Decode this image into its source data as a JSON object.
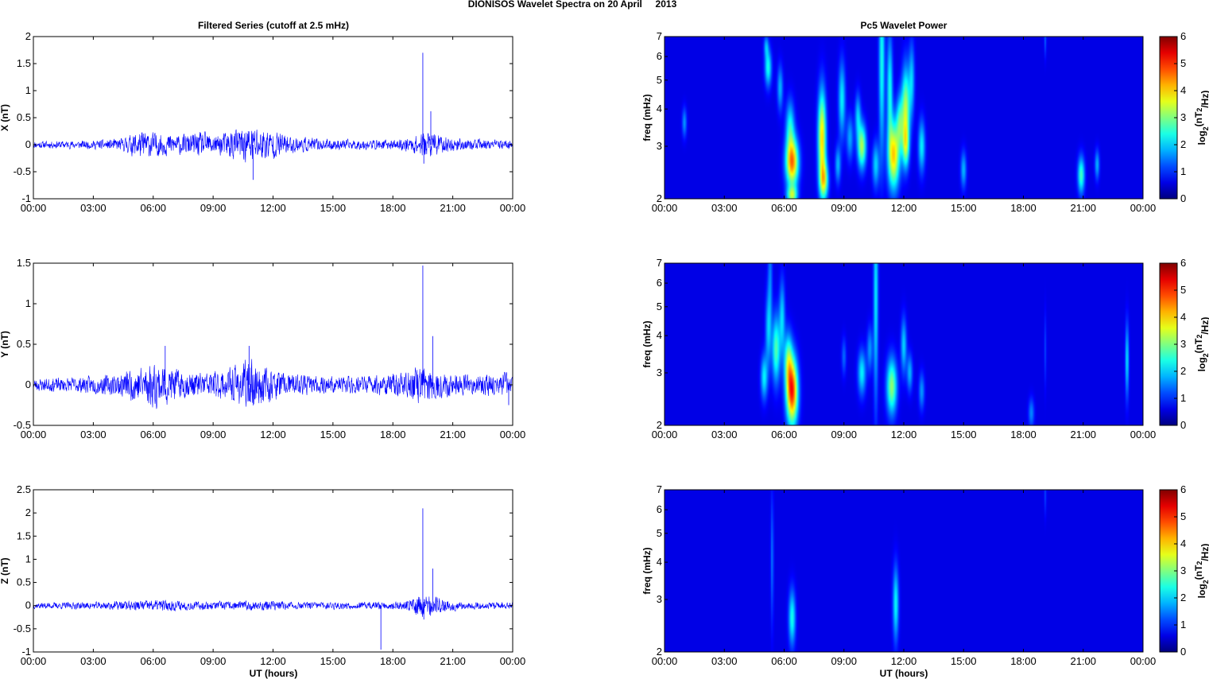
{
  "figure": {
    "suptitle": "DIONISOS Wavelet Spectra on 20 April     2013",
    "left_title": "Filtered Series (cutoff at 2.5 mHz)",
    "right_title": "Pc5 Wavelet Power",
    "x_label": "UT (hours)",
    "freq_label": "freq (mHz)",
    "colorbar_label": "log2(nT2/Hz)"
  },
  "chart_data": [
    {
      "type": "line",
      "component": "X",
      "ylabel": "X (nT)",
      "xlim": [
        0,
        24
      ],
      "xticks": [
        "00:00",
        "03:00",
        "06:00",
        "09:00",
        "12:00",
        "15:00",
        "18:00",
        "21:00",
        "00:00"
      ],
      "ylim": [
        -1,
        2
      ],
      "yticks": [
        -1,
        -0.5,
        0,
        0.5,
        1,
        1.5,
        2
      ],
      "ytick_labels": [
        "-1",
        "-0.5",
        "0",
        "0.5",
        "1",
        "1.5",
        "2"
      ],
      "color": "#0000ff",
      "activity_hours": [
        [
          0,
          0.05
        ],
        [
          3,
          0.06
        ],
        [
          4.5,
          0.09
        ],
        [
          5.2,
          0.2
        ],
        [
          6,
          0.18
        ],
        [
          6.8,
          0.15
        ],
        [
          7.6,
          0.14
        ],
        [
          8.4,
          0.18
        ],
        [
          9.2,
          0.14
        ],
        [
          10,
          0.22
        ],
        [
          11,
          0.28
        ],
        [
          12,
          0.2
        ],
        [
          13,
          0.12
        ],
        [
          14.5,
          0.08
        ],
        [
          16,
          0.07
        ],
        [
          17.5,
          0.07
        ],
        [
          18.5,
          0.08
        ],
        [
          19.3,
          0.15
        ],
        [
          19.8,
          0.22
        ],
        [
          20.5,
          0.12
        ],
        [
          21.5,
          0.08
        ],
        [
          24,
          0.06
        ]
      ],
      "spikes": [
        {
          "x": 19.5,
          "y": 1.7
        },
        {
          "x": 19.55,
          "y": -0.35
        },
        {
          "x": 19.9,
          "y": 0.62
        },
        {
          "x": 11.0,
          "y": -0.65
        }
      ],
      "seed": 11
    },
    {
      "type": "line",
      "component": "Y",
      "ylabel": "Y (nT)",
      "xlim": [
        0,
        24
      ],
      "xticks": [
        "00:00",
        "03:00",
        "06:00",
        "09:00",
        "12:00",
        "15:00",
        "18:00",
        "21:00",
        "00:00"
      ],
      "ylim": [
        -0.5,
        1.5
      ],
      "yticks": [
        -0.5,
        0,
        0.5,
        1,
        1.5
      ],
      "ytick_labels": [
        "-0.5",
        "0",
        "0.5",
        "1",
        "1.5"
      ],
      "color": "#0000ff",
      "activity_hours": [
        [
          0,
          0.06
        ],
        [
          2,
          0.07
        ],
        [
          4,
          0.1
        ],
        [
          5.3,
          0.18
        ],
        [
          6.2,
          0.22
        ],
        [
          6.8,
          0.18
        ],
        [
          7.6,
          0.12
        ],
        [
          8.6,
          0.12
        ],
        [
          9.6,
          0.14
        ],
        [
          10.8,
          0.24
        ],
        [
          11.8,
          0.16
        ],
        [
          13,
          0.1
        ],
        [
          14.5,
          0.08
        ],
        [
          16,
          0.09
        ],
        [
          17.5,
          0.1
        ],
        [
          18.7,
          0.12
        ],
        [
          19.5,
          0.2
        ],
        [
          20.5,
          0.12
        ],
        [
          22,
          0.09
        ],
        [
          23.8,
          0.12
        ],
        [
          24,
          0.1
        ]
      ],
      "spikes": [
        {
          "x": 19.5,
          "y": 1.47
        },
        {
          "x": 20.0,
          "y": 0.6
        },
        {
          "x": 10.8,
          "y": 0.48
        },
        {
          "x": 6.6,
          "y": 0.48
        },
        {
          "x": 23.8,
          "y": -0.25
        }
      ],
      "seed": 23
    },
    {
      "type": "line",
      "component": "Z",
      "ylabel": "Z (nT)",
      "xlim": [
        0,
        24
      ],
      "xticks": [
        "00:00",
        "03:00",
        "06:00",
        "09:00",
        "12:00",
        "15:00",
        "18:00",
        "21:00",
        "00:00"
      ],
      "ylim": [
        -1,
        2.5
      ],
      "yticks": [
        -1,
        -0.5,
        0,
        0.5,
        1,
        1.5,
        2,
        2.5
      ],
      "ytick_labels": [
        "-1",
        "-0.5",
        "0",
        "0.5",
        "1",
        "1.5",
        "2",
        "2.5"
      ],
      "color": "#0000ff",
      "activity_hours": [
        [
          0,
          0.05
        ],
        [
          3,
          0.06
        ],
        [
          5.5,
          0.09
        ],
        [
          6.5,
          0.1
        ],
        [
          8,
          0.07
        ],
        [
          10,
          0.07
        ],
        [
          11.8,
          0.09
        ],
        [
          13,
          0.06
        ],
        [
          16,
          0.06
        ],
        [
          18.5,
          0.07
        ],
        [
          19.5,
          0.2
        ],
        [
          20.2,
          0.14
        ],
        [
          21.5,
          0.06
        ],
        [
          24,
          0.06
        ]
      ],
      "spikes": [
        {
          "x": 19.5,
          "y": 2.1
        },
        {
          "x": 20.0,
          "y": 0.8
        },
        {
          "x": 19.55,
          "y": -0.3
        },
        {
          "x": 17.4,
          "y": -0.95
        }
      ],
      "seed": 37
    },
    {
      "type": "heatmap",
      "component": "X",
      "xlim": [
        0,
        24
      ],
      "xticks": [
        "00:00",
        "03:00",
        "06:00",
        "09:00",
        "12:00",
        "15:00",
        "18:00",
        "21:00",
        "00:00"
      ],
      "ylabel": "freq (mHz)",
      "yscale": "log",
      "ylim": [
        2,
        7
      ],
      "yticks": [
        2,
        3,
        4,
        5,
        6,
        7
      ],
      "colorbar": {
        "range": [
          0,
          6
        ],
        "ticks": [
          0,
          1,
          2,
          3,
          4,
          5,
          6
        ],
        "label": "log2(nT2/Hz)",
        "colormap": "jet"
      },
      "blobs": [
        {
          "t": 1.0,
          "f": 3.6,
          "dt": 0.08,
          "df": 0.08,
          "a": 1.2
        },
        {
          "t": 5.2,
          "f": 5.5,
          "dt": 0.12,
          "df": 0.1,
          "a": 2.0
        },
        {
          "t": 5.1,
          "f": 6.5,
          "dt": 0.08,
          "df": 0.06,
          "a": 1.2
        },
        {
          "t": 5.8,
          "f": 4.7,
          "dt": 0.1,
          "df": 0.12,
          "a": 1.4
        },
        {
          "t": 6.4,
          "f": 2.65,
          "dt": 0.22,
          "df": 0.13,
          "a": 4.4
        },
        {
          "t": 6.3,
          "f": 3.5,
          "dt": 0.15,
          "df": 0.14,
          "a": 1.8
        },
        {
          "t": 6.4,
          "f": 2.05,
          "dt": 0.18,
          "df": 0.05,
          "a": 2.6
        },
        {
          "t": 7.9,
          "f": 3.2,
          "dt": 0.14,
          "df": 0.25,
          "a": 3.8
        },
        {
          "t": 8.0,
          "f": 2.3,
          "dt": 0.15,
          "df": 0.1,
          "a": 2.8
        },
        {
          "t": 8.7,
          "f": 2.6,
          "dt": 0.1,
          "df": 0.1,
          "a": 1.4
        },
        {
          "t": 8.9,
          "f": 4.3,
          "dt": 0.12,
          "df": 0.2,
          "a": 1.8
        },
        {
          "t": 9.3,
          "f": 3.2,
          "dt": 0.12,
          "df": 0.12,
          "a": 1.3
        },
        {
          "t": 9.9,
          "f": 3.0,
          "dt": 0.15,
          "df": 0.12,
          "a": 3.0
        },
        {
          "t": 9.7,
          "f": 3.8,
          "dt": 0.1,
          "df": 0.12,
          "a": 1.5
        },
        {
          "t": 10.6,
          "f": 2.6,
          "dt": 0.12,
          "df": 0.12,
          "a": 1.6
        },
        {
          "t": 10.9,
          "f": 5.8,
          "dt": 0.1,
          "df": 0.5,
          "a": 2.0
        },
        {
          "t": 11.3,
          "f": 4.6,
          "dt": 0.1,
          "df": 0.3,
          "a": 2.0
        },
        {
          "t": 11.5,
          "f": 2.8,
          "dt": 0.2,
          "df": 0.18,
          "a": 3.8
        },
        {
          "t": 11.8,
          "f": 3.6,
          "dt": 0.12,
          "df": 0.15,
          "a": 2.0
        },
        {
          "t": 12.1,
          "f": 4.0,
          "dt": 0.14,
          "df": 0.22,
          "a": 3.0
        },
        {
          "t": 12.1,
          "f": 3.0,
          "dt": 0.12,
          "df": 0.12,
          "a": 2.2
        },
        {
          "t": 12.4,
          "f": 5.0,
          "dt": 0.1,
          "df": 0.2,
          "a": 1.5
        },
        {
          "t": 12.9,
          "f": 3.0,
          "dt": 0.12,
          "df": 0.14,
          "a": 1.8
        },
        {
          "t": 15.0,
          "f": 2.5,
          "dt": 0.1,
          "df": 0.1,
          "a": 1.4
        },
        {
          "t": 20.9,
          "f": 2.4,
          "dt": 0.12,
          "df": 0.1,
          "a": 2.3
        },
        {
          "t": 21.7,
          "f": 2.6,
          "dt": 0.08,
          "df": 0.08,
          "a": 1.4
        },
        {
          "t": 19.1,
          "f": 6.9,
          "dt": 0.04,
          "df": 0.1,
          "a": 0.8
        }
      ]
    },
    {
      "type": "heatmap",
      "component": "Y",
      "xlim": [
        0,
        24
      ],
      "xticks": [
        "00:00",
        "03:00",
        "06:00",
        "09:00",
        "12:00",
        "15:00",
        "18:00",
        "21:00",
        "00:00"
      ],
      "ylabel": "freq (mHz)",
      "yscale": "log",
      "ylim": [
        2,
        7
      ],
      "yticks": [
        2,
        3,
        4,
        5,
        6,
        7
      ],
      "colorbar": {
        "range": [
          0,
          6
        ],
        "ticks": [
          0,
          1,
          2,
          3,
          4,
          5,
          6
        ],
        "label": "log2(nT2/Hz)",
        "colormap": "jet"
      },
      "blobs": [
        {
          "t": 5.0,
          "f": 2.9,
          "dt": 0.12,
          "df": 0.12,
          "a": 1.8
        },
        {
          "t": 5.2,
          "f": 4.2,
          "dt": 0.1,
          "df": 0.2,
          "a": 1.4
        },
        {
          "t": 5.3,
          "f": 6.3,
          "dt": 0.08,
          "df": 0.3,
          "a": 1.0
        },
        {
          "t": 5.6,
          "f": 3.6,
          "dt": 0.14,
          "df": 0.18,
          "a": 2.4
        },
        {
          "t": 5.9,
          "f": 4.6,
          "dt": 0.1,
          "df": 0.2,
          "a": 1.6
        },
        {
          "t": 6.4,
          "f": 2.6,
          "dt": 0.2,
          "df": 0.18,
          "a": 5.0
        },
        {
          "t": 6.2,
          "f": 3.3,
          "dt": 0.14,
          "df": 0.15,
          "a": 2.2
        },
        {
          "t": 9.0,
          "f": 3.4,
          "dt": 0.08,
          "df": 0.1,
          "a": 0.9
        },
        {
          "t": 9.9,
          "f": 3.0,
          "dt": 0.14,
          "df": 0.12,
          "a": 1.8
        },
        {
          "t": 10.3,
          "f": 3.6,
          "dt": 0.1,
          "df": 0.12,
          "a": 1.2
        },
        {
          "t": 10.6,
          "f": 5.5,
          "dt": 0.08,
          "df": 0.6,
          "a": 1.8
        },
        {
          "t": 11.4,
          "f": 2.7,
          "dt": 0.18,
          "df": 0.15,
          "a": 2.8
        },
        {
          "t": 12.0,
          "f": 3.7,
          "dt": 0.1,
          "df": 0.15,
          "a": 1.6
        },
        {
          "t": 12.3,
          "f": 3.0,
          "dt": 0.1,
          "df": 0.1,
          "a": 1.4
        },
        {
          "t": 12.9,
          "f": 2.6,
          "dt": 0.1,
          "df": 0.1,
          "a": 1.2
        },
        {
          "t": 18.4,
          "f": 2.2,
          "dt": 0.1,
          "df": 0.08,
          "a": 1.1
        },
        {
          "t": 19.1,
          "f": 3.6,
          "dt": 0.04,
          "df": 0.2,
          "a": 0.6
        },
        {
          "t": 23.2,
          "f": 3.3,
          "dt": 0.06,
          "df": 0.2,
          "a": 1.8
        }
      ]
    },
    {
      "type": "heatmap",
      "component": "Z",
      "xlim": [
        0,
        24
      ],
      "xticks": [
        "00:00",
        "03:00",
        "06:00",
        "09:00",
        "12:00",
        "15:00",
        "18:00",
        "21:00",
        "00:00"
      ],
      "ylabel": "freq (mHz)",
      "yscale": "log",
      "ylim": [
        2,
        7
      ],
      "yticks": [
        2,
        3,
        4,
        5,
        6,
        7
      ],
      "colorbar": {
        "range": [
          0,
          6
        ],
        "ticks": [
          0,
          1,
          2,
          3,
          4,
          5,
          6
        ],
        "label": "log2(nT2/Hz)",
        "colormap": "jet"
      },
      "blobs": [
        {
          "t": 5.4,
          "f": 4.1,
          "dt": 0.05,
          "df": 0.35,
          "a": 1.0
        },
        {
          "t": 6.4,
          "f": 2.6,
          "dt": 0.12,
          "df": 0.15,
          "a": 2.0
        },
        {
          "t": 11.6,
          "f": 2.9,
          "dt": 0.1,
          "df": 0.2,
          "a": 1.9
        },
        {
          "t": 19.1,
          "f": 6.8,
          "dt": 0.04,
          "df": 0.12,
          "a": 0.6
        }
      ]
    }
  ]
}
